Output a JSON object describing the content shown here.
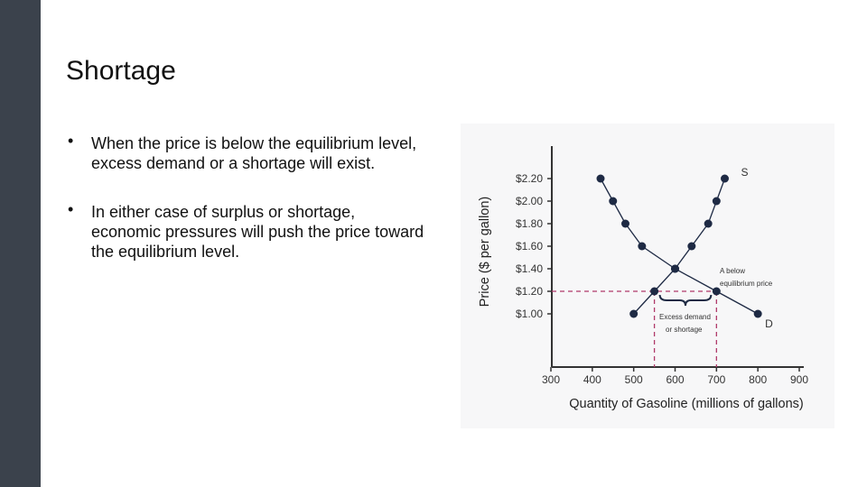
{
  "slide": {
    "title": "Shortage",
    "bullets": [
      "When the price is below the equilibrium level, excess demand or a shortage will exist.",
      "In either case of surplus or shortage, economic pressures will push the price toward the equilibrium level."
    ],
    "bullet_glyph": "•"
  },
  "colors": {
    "sidebar": "#3b424c",
    "chart_bg": "#f7f7f8",
    "series": "#1e2a44",
    "dashed": "#b03a6a",
    "axis": "#333333"
  },
  "chart_data": {
    "type": "line",
    "xlabel": "Quantity of Gasoline (millions of gallons)",
    "ylabel": "Price ($ per gallon)",
    "xlim": [
      300,
      900
    ],
    "ylim": [
      1.0,
      2.2
    ],
    "x_ticks": [
      "300",
      "400",
      "500",
      "600",
      "700",
      "800",
      "900"
    ],
    "y_ticks": [
      "$1.00",
      "$1.20",
      "$1.40",
      "$1.60",
      "$1.80",
      "$2.00",
      "$2.20"
    ],
    "grid": false,
    "series": [
      {
        "name": "S",
        "points": [
          [
            500,
            1.0
          ],
          [
            550,
            1.2
          ],
          [
            600,
            1.4
          ],
          [
            640,
            1.6
          ],
          [
            680,
            1.8
          ],
          [
            700,
            2.0
          ],
          [
            720,
            2.2
          ]
        ]
      },
      {
        "name": "D",
        "points": [
          [
            420,
            2.2
          ],
          [
            450,
            2.0
          ],
          [
            480,
            1.8
          ],
          [
            520,
            1.6
          ],
          [
            600,
            1.4
          ],
          [
            700,
            1.2
          ],
          [
            800,
            1.0
          ]
        ]
      }
    ],
    "reference": {
      "price": 1.2,
      "q_supplied": 550,
      "q_demanded": 700
    },
    "annotations": {
      "below_price": [
        "A below",
        "equilibrium price"
      ],
      "shortage": [
        "Excess demand",
        "or shortage"
      ]
    }
  }
}
